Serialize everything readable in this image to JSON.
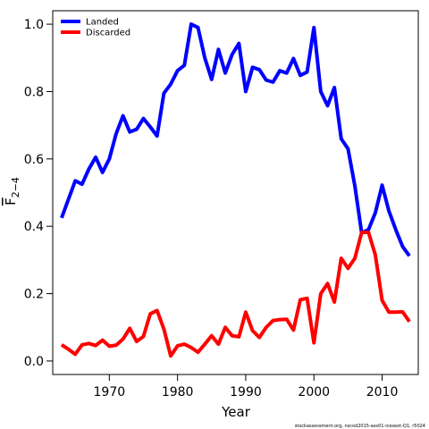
{
  "chart_data": {
    "type": "line",
    "xlabel": "Year",
    "ylabel_main": "F",
    "ylabel_sub": "2−4",
    "xlim": [
      1961.7,
      2015.3
    ],
    "ylim": [
      -0.04,
      1.04
    ],
    "x_ticks": [
      1970,
      1980,
      1990,
      2000,
      2010
    ],
    "y_ticks": [
      0.0,
      0.2,
      0.4,
      0.6,
      0.8,
      1.0
    ],
    "y_tick_labels": [
      "0.0",
      "0.2",
      "0.4",
      "0.6",
      "0.8",
      "1.0"
    ],
    "legend_position": "top-left",
    "footnote": "stockassessment.org, nscod2015-ass01-icesext-Q1, r5024",
    "x": [
      1963,
      1964,
      1965,
      1966,
      1967,
      1968,
      1969,
      1970,
      1971,
      1972,
      1973,
      1974,
      1975,
      1976,
      1977,
      1978,
      1979,
      1980,
      1981,
      1982,
      1983,
      1984,
      1985,
      1986,
      1987,
      1988,
      1989,
      1990,
      1991,
      1992,
      1993,
      1994,
      1995,
      1996,
      1997,
      1998,
      1999,
      2000,
      2001,
      2002,
      2003,
      2004,
      2005,
      2006,
      2007,
      2008,
      2009,
      2010,
      2011,
      2012,
      2013,
      2014
    ],
    "series": [
      {
        "name": "Landed",
        "color": "#0000ff",
        "values": [
          0.425,
          0.48,
          0.535,
          0.525,
          0.57,
          0.605,
          0.56,
          0.6,
          0.675,
          0.728,
          0.68,
          0.688,
          0.72,
          0.695,
          0.668,
          0.795,
          0.822,
          0.862,
          0.878,
          1.0,
          0.99,
          0.9,
          0.836,
          0.925,
          0.855,
          0.91,
          0.943,
          0.8,
          0.872,
          0.865,
          0.834,
          0.828,
          0.862,
          0.855,
          0.898,
          0.848,
          0.858,
          0.99,
          0.8,
          0.758,
          0.812,
          0.66,
          0.63,
          0.52,
          0.38,
          0.39,
          0.44,
          0.522,
          0.445,
          0.39,
          0.34,
          0.312
        ]
      },
      {
        "name": "Discarded",
        "color": "#ff0000",
        "values": [
          0.048,
          0.035,
          0.02,
          0.048,
          0.052,
          0.046,
          0.062,
          0.044,
          0.047,
          0.065,
          0.097,
          0.058,
          0.073,
          0.14,
          0.15,
          0.095,
          0.015,
          0.045,
          0.05,
          0.04,
          0.026,
          0.05,
          0.075,
          0.05,
          0.1,
          0.075,
          0.072,
          0.145,
          0.09,
          0.07,
          0.1,
          0.12,
          0.123,
          0.124,
          0.092,
          0.182,
          0.186,
          0.054,
          0.2,
          0.23,
          0.175,
          0.305,
          0.275,
          0.305,
          0.382,
          0.382,
          0.315,
          0.18,
          0.145,
          0.145,
          0.146,
          0.117
        ]
      }
    ]
  }
}
